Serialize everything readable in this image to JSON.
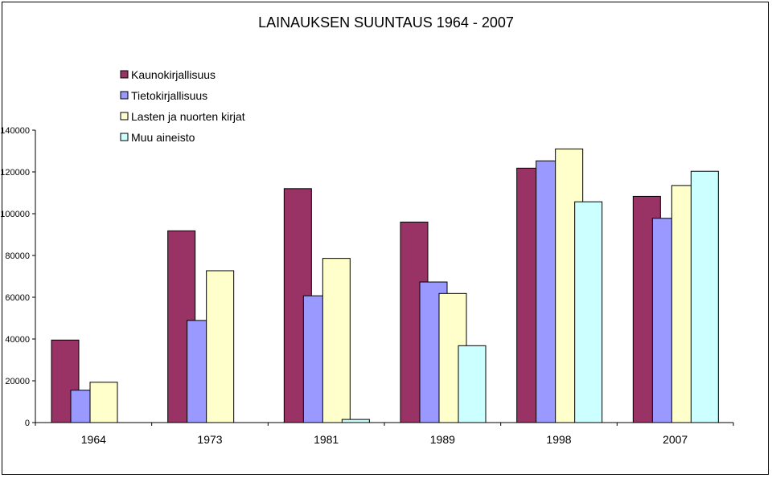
{
  "chart_data": {
    "type": "bar",
    "title": "LAINAUKSEN SUUNTAUS 1964 - 2007",
    "categories": [
      "1964",
      "1973",
      "1981",
      "1989",
      "1998",
      "2007"
    ],
    "series": [
      {
        "name": "Kaunokirjallisuus",
        "color": "#993366",
        "values": [
          39500,
          91800,
          112000,
          96000,
          121800,
          108300
        ]
      },
      {
        "name": "Tietokirjallisuus",
        "color": "#9999ff",
        "values": [
          15500,
          48900,
          60700,
          67300,
          125300,
          97800
        ]
      },
      {
        "name": "Lasten ja nuorten kirjat",
        "color": "#ffffcc",
        "values": [
          19300,
          72700,
          78600,
          61800,
          131000,
          113500
        ]
      },
      {
        "name": "Muu aineisto",
        "color": "#ccffff",
        "values": [
          null,
          null,
          1500,
          36800,
          105700,
          120300
        ]
      }
    ],
    "ylim": [
      0,
      140000
    ],
    "yticks": [
      "0",
      "20000",
      "40000",
      "60000",
      "80000",
      "100000",
      "120000",
      "140000"
    ],
    "legend_position": "top-left",
    "grid": false
  }
}
